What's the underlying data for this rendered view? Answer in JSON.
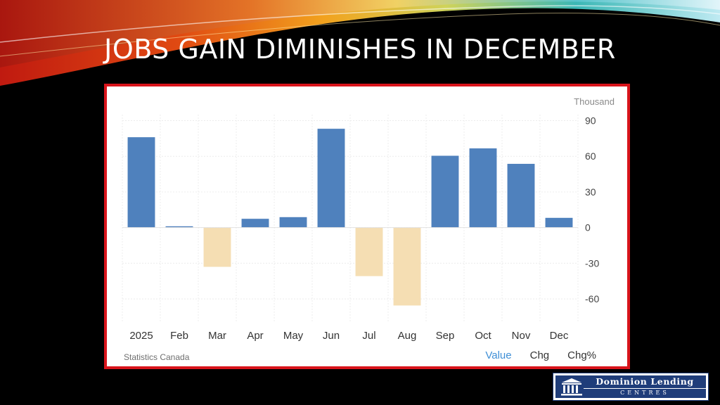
{
  "slide": {
    "title": "JOBS GAIN DIMINISHES IN DECEMBER"
  },
  "chart_data": {
    "type": "bar",
    "unit_label": "Thousand",
    "source": "Statistics Canada",
    "categories": [
      "2025",
      "Feb",
      "Mar",
      "Apr",
      "May",
      "Jun",
      "Jul",
      "Aug",
      "Sep",
      "Oct",
      "Nov",
      "Dec"
    ],
    "values": [
      76,
      1.1,
      -33,
      7.4,
      8.8,
      83.1,
      -40.8,
      -65.5,
      60.4,
      66.6,
      53.6,
      8.2
    ],
    "ylim": [
      -80,
      95
    ],
    "yticks": [
      90,
      60,
      30,
      0,
      -30,
      -60
    ],
    "grid": true,
    "colors": {
      "positive": "#4f81bd",
      "negative": "#f5deb3"
    },
    "tabs": [
      "Value",
      "Chg",
      "Chg%"
    ],
    "active_tab": "Value"
  },
  "logo": {
    "line1": "Dominion Lending",
    "line2": "CENTRES",
    "mark": "building-columns-icon"
  }
}
